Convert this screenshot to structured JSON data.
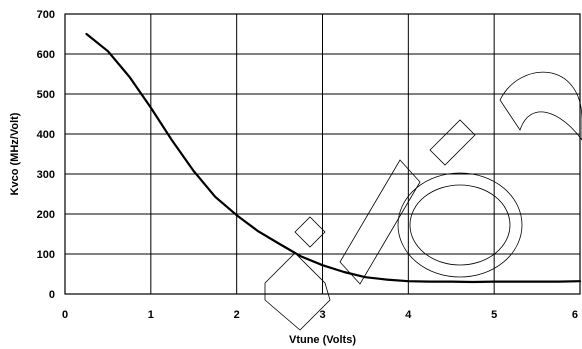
{
  "chart_data": {
    "type": "line",
    "xlabel": "Vtune (Volts)",
    "ylabel": "Kvco (MHz/Volt)",
    "xlim": [
      0,
      6
    ],
    "ylim": [
      0,
      700
    ],
    "xticks": [
      0,
      1,
      2,
      3,
      4,
      5,
      6
    ],
    "yticks": [
      0,
      100,
      200,
      300,
      400,
      500,
      600,
      700
    ],
    "grid": true,
    "legend": "none",
    "series": [
      {
        "x": [
          0.25,
          0.5,
          0.75,
          1.0,
          1.25,
          1.5,
          1.75,
          2.0,
          2.25,
          2.5,
          2.75,
          3.0,
          3.25,
          3.5,
          3.75,
          4.0,
          4.25,
          4.5,
          4.75,
          5.0,
          5.25,
          5.5,
          5.75,
          6.0
        ],
        "y": [
          650,
          607,
          543,
          466,
          383,
          307,
          243,
          197,
          157,
          125,
          94,
          72,
          55,
          42,
          36,
          32,
          31,
          31,
          30,
          31,
          31,
          31,
          31,
          32
        ],
        "color": "#000000"
      }
    ]
  }
}
